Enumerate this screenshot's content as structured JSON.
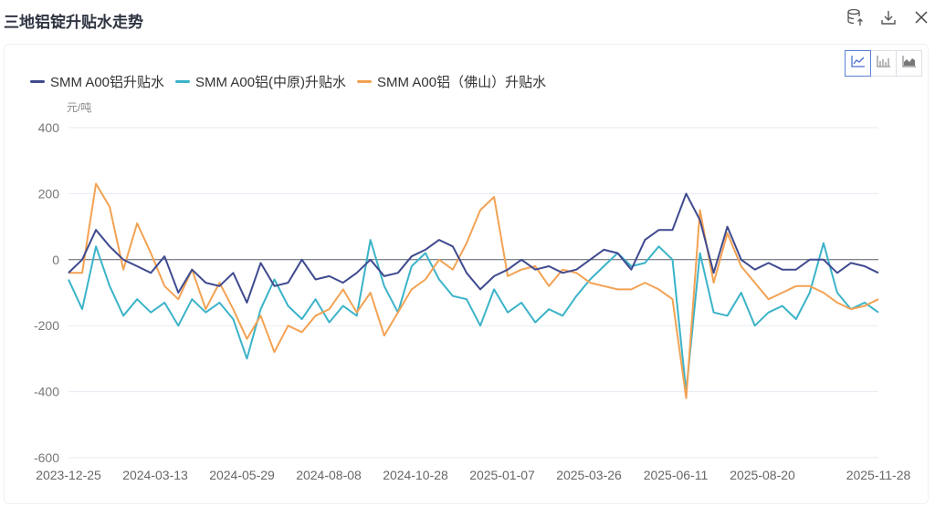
{
  "header": {
    "title": "三地铝锭升贴水走势",
    "icons": [
      "database-upload-icon",
      "download-icon",
      "close-icon"
    ]
  },
  "chart_switch": {
    "options": [
      "line-chart-icon",
      "bar-chart-icon",
      "area-chart-icon"
    ],
    "active": "line-chart-icon"
  },
  "colors": {
    "s0": "#3f4a8f",
    "s1": "#3bb3c8",
    "s2": "#f3a253",
    "grid": "#e8eaf2",
    "zero": "#555a66"
  },
  "chart_data": {
    "type": "line",
    "unit": "元/吨",
    "ylim": [
      -600,
      400
    ],
    "yticks": [
      "400",
      "200",
      "0",
      "-200",
      "-400",
      "-600"
    ],
    "ytick_values": [
      400,
      200,
      0,
      -200,
      -400,
      -600
    ],
    "xticks": [
      "2023-12-25",
      "2024-03-13",
      "2024-05-29",
      "2024-08-08",
      "2024-10-28",
      "2025-01-07",
      "2025-03-26",
      "2025-06-11",
      "2025-08-20",
      "2025-11-28"
    ],
    "x_range": [
      "2023-12-25",
      "2025-11-28"
    ],
    "legend_position": "top-left",
    "series": [
      {
        "name": "SMM A00铝升贴水",
        "values": [
          -40,
          0,
          90,
          40,
          0,
          -20,
          -40,
          10,
          -100,
          -30,
          -70,
          -80,
          -40,
          -130,
          -10,
          -80,
          -70,
          0,
          -60,
          -50,
          -70,
          -40,
          0,
          -50,
          -40,
          10,
          30,
          60,
          40,
          -40,
          -90,
          -50,
          -30,
          0,
          -30,
          -20,
          -40,
          -30,
          0,
          30,
          20,
          -30,
          60,
          90,
          90,
          200,
          120,
          -40,
          100,
          0,
          -30,
          -10,
          -30,
          -30,
          0,
          0,
          -40,
          -10,
          -20,
          -40
        ]
      },
      {
        "name": "SMM A00铝(中原)升贴水",
        "values": [
          -60,
          -150,
          40,
          -80,
          -170,
          -120,
          -160,
          -130,
          -200,
          -120,
          -160,
          -130,
          -180,
          -300,
          -150,
          -60,
          -140,
          -180,
          -120,
          -190,
          -140,
          -170,
          60,
          -80,
          -160,
          -20,
          20,
          -60,
          -110,
          -120,
          -200,
          -90,
          -160,
          -130,
          -190,
          -150,
          -170,
          -110,
          -60,
          -20,
          20,
          -20,
          -10,
          40,
          0,
          -400,
          20,
          -160,
          -170,
          -100,
          -200,
          -160,
          -140,
          -180,
          -100,
          50,
          -100,
          -150,
          -130,
          -160
        ]
      },
      {
        "name": "SMM A00铝（佛山）升贴水",
        "values": [
          -40,
          -40,
          230,
          160,
          -30,
          110,
          20,
          -80,
          -120,
          -30,
          -150,
          -70,
          -150,
          -240,
          -170,
          -280,
          -200,
          -220,
          -170,
          -150,
          -90,
          -160,
          -100,
          -230,
          -160,
          -90,
          -60,
          0,
          -30,
          50,
          150,
          190,
          -50,
          -30,
          -20,
          -80,
          -30,
          -40,
          -70,
          -80,
          -90,
          -90,
          -70,
          -90,
          -120,
          -420,
          150,
          -70,
          80,
          -20,
          -70,
          -120,
          -100,
          -80,
          -80,
          -100,
          -130,
          -150,
          -140,
          -120
        ]
      }
    ]
  }
}
